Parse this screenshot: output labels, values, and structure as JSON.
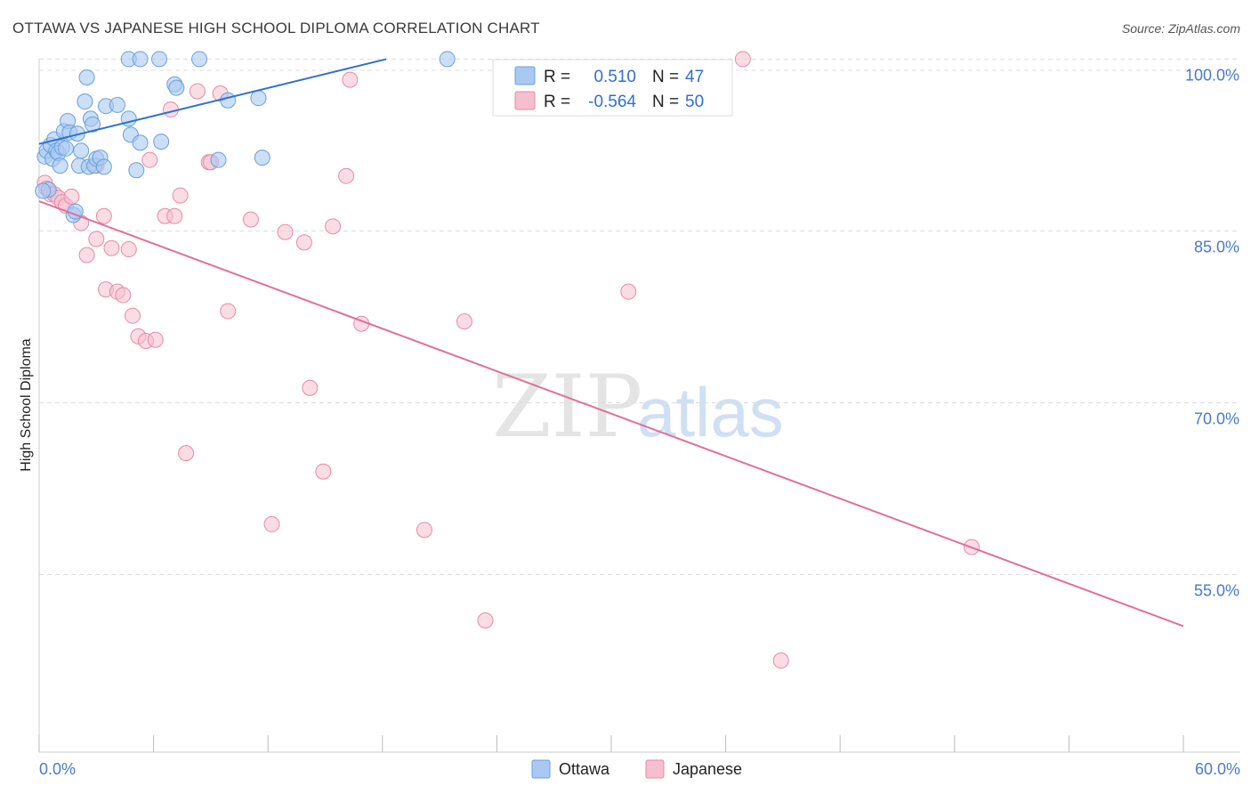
{
  "title": "OTTAWA VS JAPANESE HIGH SCHOOL DIPLOMA CORRELATION CHART",
  "source": "Source: ZipAtlas.com",
  "watermark": {
    "zip": "ZIP",
    "atlas": "atlas"
  },
  "colors": {
    "ottawa_fill": "#a9c9f2",
    "ottawa_stroke": "#6a9fdc",
    "ottawa_line": "#2f6fcf",
    "japanese_fill": "#f6bfd0",
    "japanese_stroke": "#e68aa8",
    "japanese_line": "#e0709a",
    "tick_label": "#4a7ac8",
    "grid": "#dddddd"
  },
  "legend": {
    "rows": [
      {
        "r_label": "R =",
        "r_value": "0.510",
        "n_label": "N =",
        "n_value": "47"
      },
      {
        "r_label": "R =",
        "r_value": "-0.564",
        "n_label": "N =",
        "n_value": "50"
      }
    ]
  },
  "bottom_legend": [
    "Ottawa",
    "Japanese"
  ],
  "chart_data": {
    "type": "scatter",
    "xlabel": "",
    "ylabel": "High School Diploma",
    "xlim": [
      0,
      60
    ],
    "ylim": [
      39.5,
      100.5
    ],
    "x_tick_labels": [
      "0.0%",
      "60.0%"
    ],
    "y_ticks": [
      55,
      70,
      85,
      100
    ],
    "y_tick_labels": [
      "55.0%",
      "70.0%",
      "85.0%",
      "100.0%"
    ],
    "series": [
      {
        "name": "Ottawa",
        "trend": {
          "x": [
            0,
            18.2
          ],
          "y": [
            92.6,
            100.0
          ]
        },
        "points": [
          [
            0.3,
            91.5
          ],
          [
            0.4,
            92.0
          ],
          [
            0.5,
            88.6
          ],
          [
            0.6,
            92.5
          ],
          [
            0.7,
            91.3
          ],
          [
            0.8,
            93.0
          ],
          [
            0.9,
            92.0
          ],
          [
            1.0,
            91.8
          ],
          [
            1.1,
            90.7
          ],
          [
            1.2,
            92.3
          ],
          [
            1.3,
            93.7
          ],
          [
            1.5,
            94.6
          ],
          [
            1.6,
            93.6
          ],
          [
            1.8,
            86.4
          ],
          [
            1.9,
            86.7
          ],
          [
            2.0,
            93.5
          ],
          [
            2.1,
            90.7
          ],
          [
            2.4,
            96.3
          ],
          [
            2.5,
            98.4
          ],
          [
            2.6,
            90.6
          ],
          [
            2.7,
            94.8
          ],
          [
            2.8,
            94.3
          ],
          [
            2.9,
            90.7
          ],
          [
            3.0,
            91.3
          ],
          [
            3.2,
            91.4
          ],
          [
            3.4,
            90.6
          ],
          [
            3.5,
            95.9
          ],
          [
            4.1,
            96.0
          ],
          [
            4.7,
            100.0
          ],
          [
            4.7,
            94.8
          ],
          [
            4.8,
            93.4
          ],
          [
            5.1,
            90.3
          ],
          [
            5.3,
            92.7
          ],
          [
            5.3,
            100.0
          ],
          [
            6.3,
            100.0
          ],
          [
            6.4,
            92.8
          ],
          [
            7.1,
            97.8
          ],
          [
            7.2,
            97.5
          ],
          [
            8.4,
            100.0
          ],
          [
            9.4,
            91.2
          ],
          [
            9.9,
            96.4
          ],
          [
            11.5,
            96.6
          ],
          [
            11.7,
            91.4
          ],
          [
            21.4,
            100.0
          ],
          [
            0.2,
            88.5
          ],
          [
            1.4,
            92.2
          ],
          [
            2.2,
            92.0
          ]
        ]
      },
      {
        "name": "Japanese",
        "trend": {
          "x": [
            0,
            60
          ],
          "y": [
            87.6,
            50.5
          ]
        },
        "points": [
          [
            0.3,
            89.2
          ],
          [
            0.4,
            88.7
          ],
          [
            0.6,
            88.2
          ],
          [
            0.8,
            88.2
          ],
          [
            1.0,
            87.9
          ],
          [
            1.2,
            87.5
          ],
          [
            1.4,
            87.2
          ],
          [
            1.7,
            88.0
          ],
          [
            2.2,
            85.7
          ],
          [
            2.5,
            82.9
          ],
          [
            3.0,
            90.7
          ],
          [
            3.0,
            84.3
          ],
          [
            3.4,
            86.3
          ],
          [
            3.5,
            79.9
          ],
          [
            3.8,
            83.5
          ],
          [
            4.1,
            79.7
          ],
          [
            4.4,
            79.4
          ],
          [
            4.7,
            83.4
          ],
          [
            4.9,
            77.6
          ],
          [
            5.2,
            75.8
          ],
          [
            5.6,
            75.4
          ],
          [
            5.8,
            91.2
          ],
          [
            6.1,
            75.5
          ],
          [
            6.6,
            86.3
          ],
          [
            6.9,
            95.6
          ],
          [
            7.1,
            86.3
          ],
          [
            7.4,
            88.1
          ],
          [
            7.7,
            65.6
          ],
          [
            8.3,
            97.2
          ],
          [
            8.9,
            91.0
          ],
          [
            9.0,
            91.0
          ],
          [
            9.5,
            97.0
          ],
          [
            9.9,
            78.0
          ],
          [
            11.1,
            86.0
          ],
          [
            12.2,
            59.4
          ],
          [
            12.9,
            84.9
          ],
          [
            13.9,
            84.0
          ],
          [
            14.2,
            71.3
          ],
          [
            14.9,
            64.0
          ],
          [
            15.4,
            85.4
          ],
          [
            16.1,
            89.8
          ],
          [
            16.3,
            98.2
          ],
          [
            16.9,
            76.9
          ],
          [
            20.2,
            58.9
          ],
          [
            22.3,
            77.1
          ],
          [
            23.4,
            51.0
          ],
          [
            30.9,
            79.7
          ],
          [
            36.9,
            100.0
          ],
          [
            38.9,
            47.5
          ],
          [
            48.9,
            57.4
          ]
        ]
      }
    ]
  }
}
